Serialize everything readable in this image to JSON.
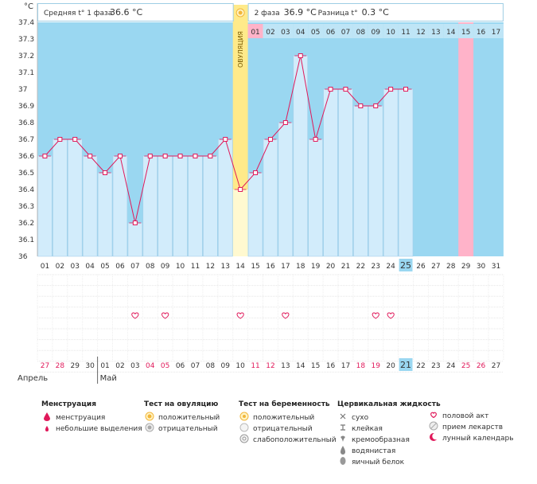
{
  "header": {
    "unit_label": "°C",
    "phase1_label": "Средняя t° 1 фаза",
    "phase1_value": "36.6 °C",
    "phase2_label": "2 фаза",
    "phase2_value": "36.9 °C",
    "diff_label": "Разница t°",
    "diff_value": "0.3 °C"
  },
  "ovulation_label": "ОВУЛЯЦИЯ",
  "month_labels": {
    "april": "Апрель",
    "may": "Май"
  },
  "colors": {
    "sky": "#9ad7f1",
    "bar_fill": "#d2ecfb",
    "bar_stroke": "#a4cfe9",
    "line": "#e0195a",
    "ovulation_top": "#ffea8a",
    "ovulation_bottom": "#fff9d0",
    "pink_col": "#ffb3c9",
    "today_cell": "#9ad7f1",
    "weekend_text": "#e0195a",
    "text": "#333333"
  },
  "chart_data": {
    "type": "line",
    "xlabel": "",
    "ylabel": "°C",
    "ylim": [
      36,
      37.4
    ],
    "yticks": [
      "36",
      "36.1",
      "36.2",
      "36.3",
      "36.4",
      "36.5",
      "36.6",
      "36.7",
      "36.8",
      "36.9",
      "37",
      "37.1",
      "37.2",
      "37.3",
      "37.4"
    ],
    "days": [
      "01",
      "02",
      "03",
      "04",
      "05",
      "06",
      "07",
      "08",
      "09",
      "10",
      "11",
      "12",
      "13",
      "14",
      "15",
      "16",
      "17",
      "18",
      "19",
      "20",
      "21",
      "22",
      "23",
      "24",
      "25",
      "26",
      "27",
      "28",
      "29",
      "30",
      "31"
    ],
    "cycle_days": [
      "01",
      "02",
      "03",
      "04",
      "05",
      "06",
      "07",
      "08",
      "09",
      "10",
      "11",
      "12",
      "13",
      "14",
      "15",
      "16",
      "17"
    ],
    "dates": [
      "27",
      "28",
      "29",
      "30",
      "01",
      "02",
      "03",
      "04",
      "05",
      "06",
      "07",
      "08",
      "09",
      "10",
      "11",
      "12",
      "13",
      "14",
      "15",
      "16",
      "17",
      "18",
      "19",
      "20",
      "21",
      "22",
      "23",
      "24",
      "25",
      "26",
      "27"
    ],
    "weekend_date_idx": [
      0,
      1,
      7,
      8,
      14,
      15,
      21,
      22,
      28,
      29
    ],
    "today_idx": 24,
    "ovulation_idx": 13,
    "phase2_header_pink_idx": 14,
    "pink_column_idx": 28,
    "month_start_idx": 4,
    "temps": [
      36.6,
      36.7,
      36.7,
      36.6,
      36.5,
      36.6,
      36.2,
      36.6,
      36.6,
      36.6,
      36.6,
      36.6,
      36.7,
      36.4,
      36.5,
      36.7,
      36.8,
      37.2,
      36.7,
      37.0,
      37.0,
      36.9,
      36.9,
      37.0,
      37.0
    ],
    "intercourse_idx": [
      6,
      8,
      13,
      16,
      22,
      23
    ]
  },
  "legend": {
    "menstruation": {
      "title": "Менструация",
      "items": [
        {
          "icon": "drop-large-icon",
          "label": "менструация"
        },
        {
          "icon": "drop-small-icon",
          "label": "небольшие выделения"
        }
      ]
    },
    "ovulation_test": {
      "title": "Тест на овуляцию",
      "items": [
        {
          "icon": "test-positive-icon",
          "label": "положительный"
        },
        {
          "icon": "test-negative-icon",
          "label": "отрицательный"
        }
      ]
    },
    "pregnancy_test": {
      "title": "Тест на беременность",
      "items": [
        {
          "icon": "pregnancy-positive-icon",
          "label": "положительный"
        },
        {
          "icon": "pregnancy-negative-icon",
          "label": "отрицательный"
        },
        {
          "icon": "pregnancy-weak-icon",
          "label": "слабоположительный"
        }
      ]
    },
    "cervical_fluid": {
      "title": "Цервикальная жидкость",
      "items": [
        {
          "icon": "dry-icon",
          "label": "сухо"
        },
        {
          "icon": "sticky-icon",
          "label": "клейкая"
        },
        {
          "icon": "creamy-icon",
          "label": "кремообразная"
        },
        {
          "icon": "watery-icon",
          "label": "водянистая"
        },
        {
          "icon": "egg-white-icon",
          "label": "яичный белок"
        }
      ]
    },
    "other": {
      "items": [
        {
          "icon": "heart-icon",
          "label": "половой акт"
        },
        {
          "icon": "pill-icon",
          "label": "прием лекарств"
        },
        {
          "icon": "moon-icon",
          "label": "лунный календарь"
        }
      ]
    }
  }
}
